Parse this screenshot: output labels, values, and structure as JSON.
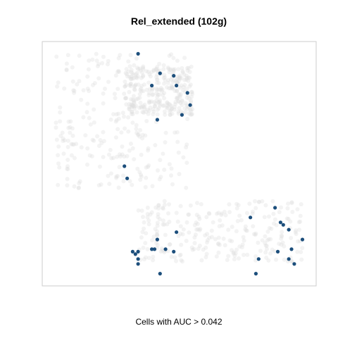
{
  "chart_data": {
    "type": "scatter",
    "title": "Rel_extended (102g)",
    "xlabel": "Cells with AUC > 0.042",
    "ylabel": "",
    "grid": false,
    "legend": "none",
    "xlim": [
      0,
      100
    ],
    "ylim": [
      0,
      100
    ],
    "colors": {
      "background_cells": "#dcdcdc",
      "highlighted_cells": "#1d4f7c",
      "frame": "#cccccc"
    },
    "highlighted": {
      "x": [
        35,
        43,
        40,
        49,
        48,
        53,
        54,
        42,
        51,
        30,
        31,
        85,
        88,
        87,
        90,
        95,
        49,
        42,
        40,
        33,
        34,
        35,
        41,
        45,
        48,
        35,
        35,
        43,
        78,
        79,
        86,
        91,
        90,
        92,
        76
      ],
      "y": [
        95,
        87,
        82,
        82,
        86,
        79,
        74,
        68,
        70,
        49,
        44,
        32,
        25,
        26,
        23,
        19,
        22,
        19,
        15,
        14,
        13,
        14,
        15,
        15,
        14,
        11,
        9,
        5,
        5,
        11,
        14,
        15,
        11,
        9,
        28
      ]
    },
    "background": {
      "regions": [
        {
          "x_range": [
            5,
            55
          ],
          "y_range": [
            40,
            95
          ]
        },
        {
          "x_range": [
            30,
            55
          ],
          "y_range": [
            70,
            90
          ]
        },
        {
          "x_range": [
            35,
            95
          ],
          "y_range": [
            10,
            35
          ]
        }
      ]
    }
  }
}
